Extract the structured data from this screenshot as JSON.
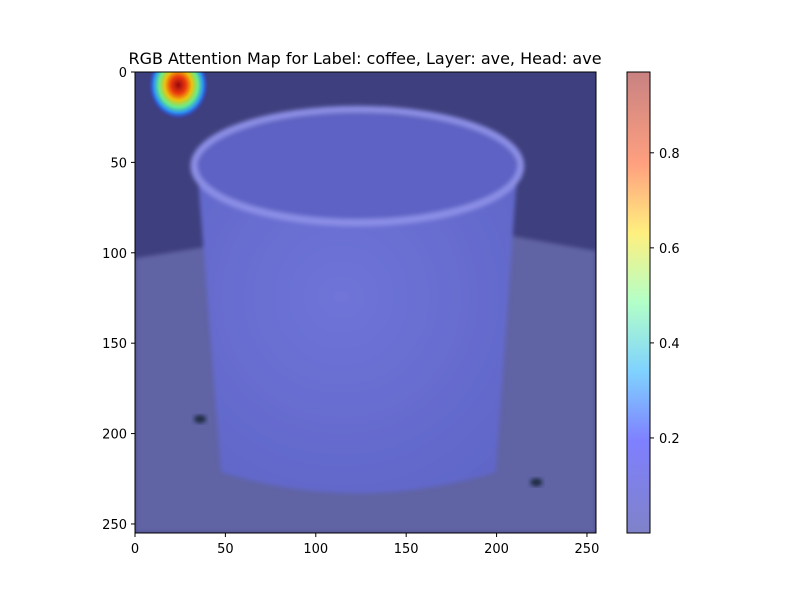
{
  "chart_data": {
    "type": "heatmap",
    "title": "RGB Attention Map for Label: coffee, Layer: ave, Head: ave",
    "xlabel": "",
    "ylabel": "",
    "xlim": [
      0,
      255
    ],
    "ylim": [
      255,
      0
    ],
    "x_ticks": [
      0,
      50,
      100,
      150,
      200,
      250
    ],
    "y_ticks": [
      0,
      50,
      100,
      150,
      200,
      250
    ],
    "y_inverted": true,
    "grid": false,
    "colormap": "jet",
    "overlay_alpha": 0.5,
    "colorbar": {
      "min": 0.0,
      "max": 0.97,
      "ticks": [
        0.2,
        0.4,
        0.6,
        0.8
      ],
      "tick_labels": [
        "0.2",
        "0.4",
        "0.6",
        "0.8"
      ]
    },
    "background_level": 0.0,
    "hotspots": [
      {
        "x": 24,
        "y": 5,
        "value": 0.97
      }
    ],
    "underlying_image": {
      "subject": "white mug on a table",
      "mug_rim": {
        "cx": 123,
        "cy": 52,
        "rx": 92,
        "ry": 33
      },
      "mug_bottom_y": 238,
      "table_edge_y": [
        103,
        87
      ],
      "dark_dots": [
        {
          "x": 36,
          "y": 192
        },
        {
          "x": 222,
          "y": 227
        }
      ]
    }
  }
}
